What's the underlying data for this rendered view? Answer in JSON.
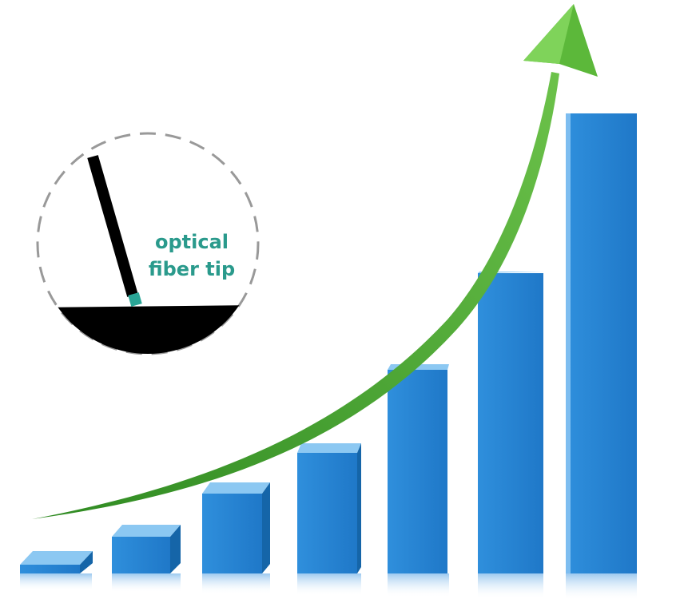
{
  "callout": {
    "label_lines": [
      "optical",
      "fiber tip"
    ]
  }
}
